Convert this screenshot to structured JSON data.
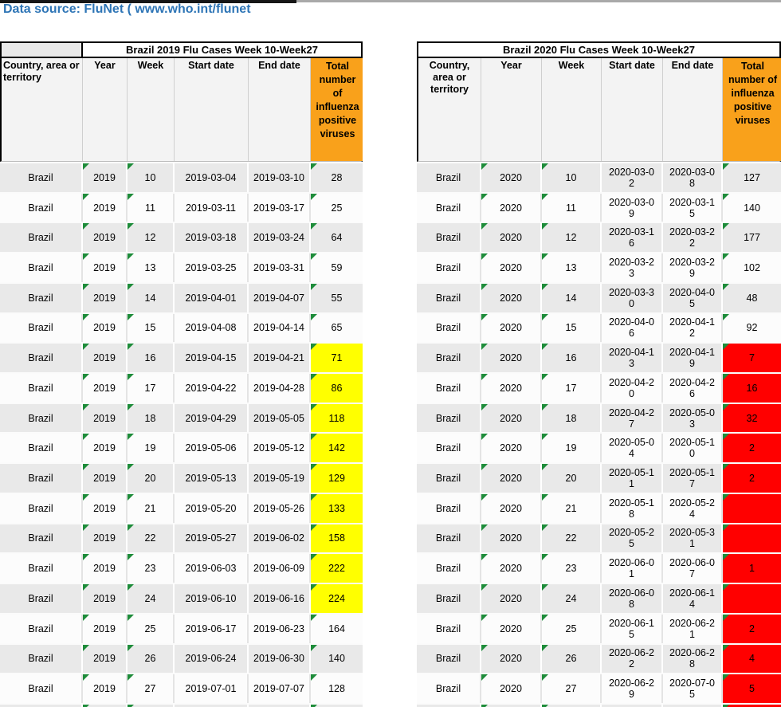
{
  "header": {
    "data_source": "Data source: FluNet ( www.who.int/flunet"
  },
  "colors": {
    "accent_blue": "#2E75B6",
    "header_orange": "#F9A11B",
    "highlight_yellow": "#FFFF00",
    "highlight_red": "#FF0000",
    "flag_green": "#1E8C3A",
    "band_gray": "#E9E9E9",
    "band_white": "#FCFCFC"
  },
  "tables": [
    {
      "title": "Brazil 2019 Flu Cases Week 10-Week27",
      "columns": [
        "Country, area or territory",
        "Year",
        "Week",
        "Start date",
        "End date",
        "Total number of influenza positive viruses"
      ],
      "rows": [
        {
          "country": "Brazil",
          "year": "2019",
          "week": "10",
          "start_date": "2019-03-04",
          "end_date": "2019-03-10",
          "total": "28",
          "highlight": "none"
        },
        {
          "country": "Brazil",
          "year": "2019",
          "week": "11",
          "start_date": "2019-03-11",
          "end_date": "2019-03-17",
          "total": "25",
          "highlight": "none"
        },
        {
          "country": "Brazil",
          "year": "2019",
          "week": "12",
          "start_date": "2019-03-18",
          "end_date": "2019-03-24",
          "total": "64",
          "highlight": "none"
        },
        {
          "country": "Brazil",
          "year": "2019",
          "week": "13",
          "start_date": "2019-03-25",
          "end_date": "2019-03-31",
          "total": "59",
          "highlight": "none"
        },
        {
          "country": "Brazil",
          "year": "2019",
          "week": "14",
          "start_date": "2019-04-01",
          "end_date": "2019-04-07",
          "total": "55",
          "highlight": "none"
        },
        {
          "country": "Brazil",
          "year": "2019",
          "week": "15",
          "start_date": "2019-04-08",
          "end_date": "2019-04-14",
          "total": "65",
          "highlight": "none"
        },
        {
          "country": "Brazil",
          "year": "2019",
          "week": "16",
          "start_date": "2019-04-15",
          "end_date": "2019-04-21",
          "total": "71",
          "highlight": "yellow"
        },
        {
          "country": "Brazil",
          "year": "2019",
          "week": "17",
          "start_date": "2019-04-22",
          "end_date": "2019-04-28",
          "total": "86",
          "highlight": "yellow"
        },
        {
          "country": "Brazil",
          "year": "2019",
          "week": "18",
          "start_date": "2019-04-29",
          "end_date": "2019-05-05",
          "total": "118",
          "highlight": "yellow"
        },
        {
          "country": "Brazil",
          "year": "2019",
          "week": "19",
          "start_date": "2019-05-06",
          "end_date": "2019-05-12",
          "total": "142",
          "highlight": "yellow"
        },
        {
          "country": "Brazil",
          "year": "2019",
          "week": "20",
          "start_date": "2019-05-13",
          "end_date": "2019-05-19",
          "total": "129",
          "highlight": "yellow"
        },
        {
          "country": "Brazil",
          "year": "2019",
          "week": "21",
          "start_date": "2019-05-20",
          "end_date": "2019-05-26",
          "total": "133",
          "highlight": "yellow"
        },
        {
          "country": "Brazil",
          "year": "2019",
          "week": "22",
          "start_date": "2019-05-27",
          "end_date": "2019-06-02",
          "total": "158",
          "highlight": "yellow"
        },
        {
          "country": "Brazil",
          "year": "2019",
          "week": "23",
          "start_date": "2019-06-03",
          "end_date": "2019-06-09",
          "total": "222",
          "highlight": "yellow"
        },
        {
          "country": "Brazil",
          "year": "2019",
          "week": "24",
          "start_date": "2019-06-10",
          "end_date": "2019-06-16",
          "total": "224",
          "highlight": "yellow"
        },
        {
          "country": "Brazil",
          "year": "2019",
          "week": "25",
          "start_date": "2019-06-17",
          "end_date": "2019-06-23",
          "total": "164",
          "highlight": "none"
        },
        {
          "country": "Brazil",
          "year": "2019",
          "week": "26",
          "start_date": "2019-06-24",
          "end_date": "2019-06-30",
          "total": "140",
          "highlight": "none"
        },
        {
          "country": "Brazil",
          "year": "2019",
          "week": "27",
          "start_date": "2019-07-01",
          "end_date": "2019-07-07",
          "total": "128",
          "highlight": "none"
        }
      ]
    },
    {
      "title": "Brazil 2020 Flu Cases Week 10-Week27",
      "columns": [
        "Country, area or territory",
        "Year",
        "Week",
        "Start date",
        "End date",
        "Total number of influenza positive viruses"
      ],
      "rows": [
        {
          "country": "Brazil",
          "year": "2020",
          "week": "10",
          "start_date": "2020-03-02",
          "end_date": "2020-03-08",
          "total": "127",
          "highlight": "none"
        },
        {
          "country": "Brazil",
          "year": "2020",
          "week": "11",
          "start_date": "2020-03-09",
          "end_date": "2020-03-15",
          "total": "140",
          "highlight": "none"
        },
        {
          "country": "Brazil",
          "year": "2020",
          "week": "12",
          "start_date": "2020-03-16",
          "end_date": "2020-03-22",
          "total": "177",
          "highlight": "none"
        },
        {
          "country": "Brazil",
          "year": "2020",
          "week": "13",
          "start_date": "2020-03-23",
          "end_date": "2020-03-29",
          "total": "102",
          "highlight": "none"
        },
        {
          "country": "Brazil",
          "year": "2020",
          "week": "14",
          "start_date": "2020-03-30",
          "end_date": "2020-04-05",
          "total": "48",
          "highlight": "none"
        },
        {
          "country": "Brazil",
          "year": "2020",
          "week": "15",
          "start_date": "2020-04-06",
          "end_date": "2020-04-12",
          "total": "92",
          "highlight": "none"
        },
        {
          "country": "Brazil",
          "year": "2020",
          "week": "16",
          "start_date": "2020-04-13",
          "end_date": "2020-04-19",
          "total": "7",
          "highlight": "red"
        },
        {
          "country": "Brazil",
          "year": "2020",
          "week": "17",
          "start_date": "2020-04-20",
          "end_date": "2020-04-26",
          "total": "16",
          "highlight": "red"
        },
        {
          "country": "Brazil",
          "year": "2020",
          "week": "18",
          "start_date": "2020-04-27",
          "end_date": "2020-05-03",
          "total": "32",
          "highlight": "red"
        },
        {
          "country": "Brazil",
          "year": "2020",
          "week": "19",
          "start_date": "2020-05-04",
          "end_date": "2020-05-10",
          "total": "2",
          "highlight": "red"
        },
        {
          "country": "Brazil",
          "year": "2020",
          "week": "20",
          "start_date": "2020-05-11",
          "end_date": "2020-05-17",
          "total": "2",
          "highlight": "red"
        },
        {
          "country": "Brazil",
          "year": "2020",
          "week": "21",
          "start_date": "2020-05-18",
          "end_date": "2020-05-24",
          "total": "",
          "highlight": "red"
        },
        {
          "country": "Brazil",
          "year": "2020",
          "week": "22",
          "start_date": "2020-05-25",
          "end_date": "2020-05-31",
          "total": "",
          "highlight": "red"
        },
        {
          "country": "Brazil",
          "year": "2020",
          "week": "23",
          "start_date": "2020-06-01",
          "end_date": "2020-06-07",
          "total": "1",
          "highlight": "red"
        },
        {
          "country": "Brazil",
          "year": "2020",
          "week": "24",
          "start_date": "2020-06-08",
          "end_date": "2020-06-14",
          "total": "",
          "highlight": "red"
        },
        {
          "country": "Brazil",
          "year": "2020",
          "week": "25",
          "start_date": "2020-06-15",
          "end_date": "2020-06-21",
          "total": "2",
          "highlight": "red"
        },
        {
          "country": "Brazil",
          "year": "2020",
          "week": "26",
          "start_date": "2020-06-22",
          "end_date": "2020-06-28",
          "total": "4",
          "highlight": "red"
        },
        {
          "country": "Brazil",
          "year": "2020",
          "week": "27",
          "start_date": "2020-06-29",
          "end_date": "2020-07-05",
          "total": "5",
          "highlight": "red"
        }
      ]
    }
  ]
}
